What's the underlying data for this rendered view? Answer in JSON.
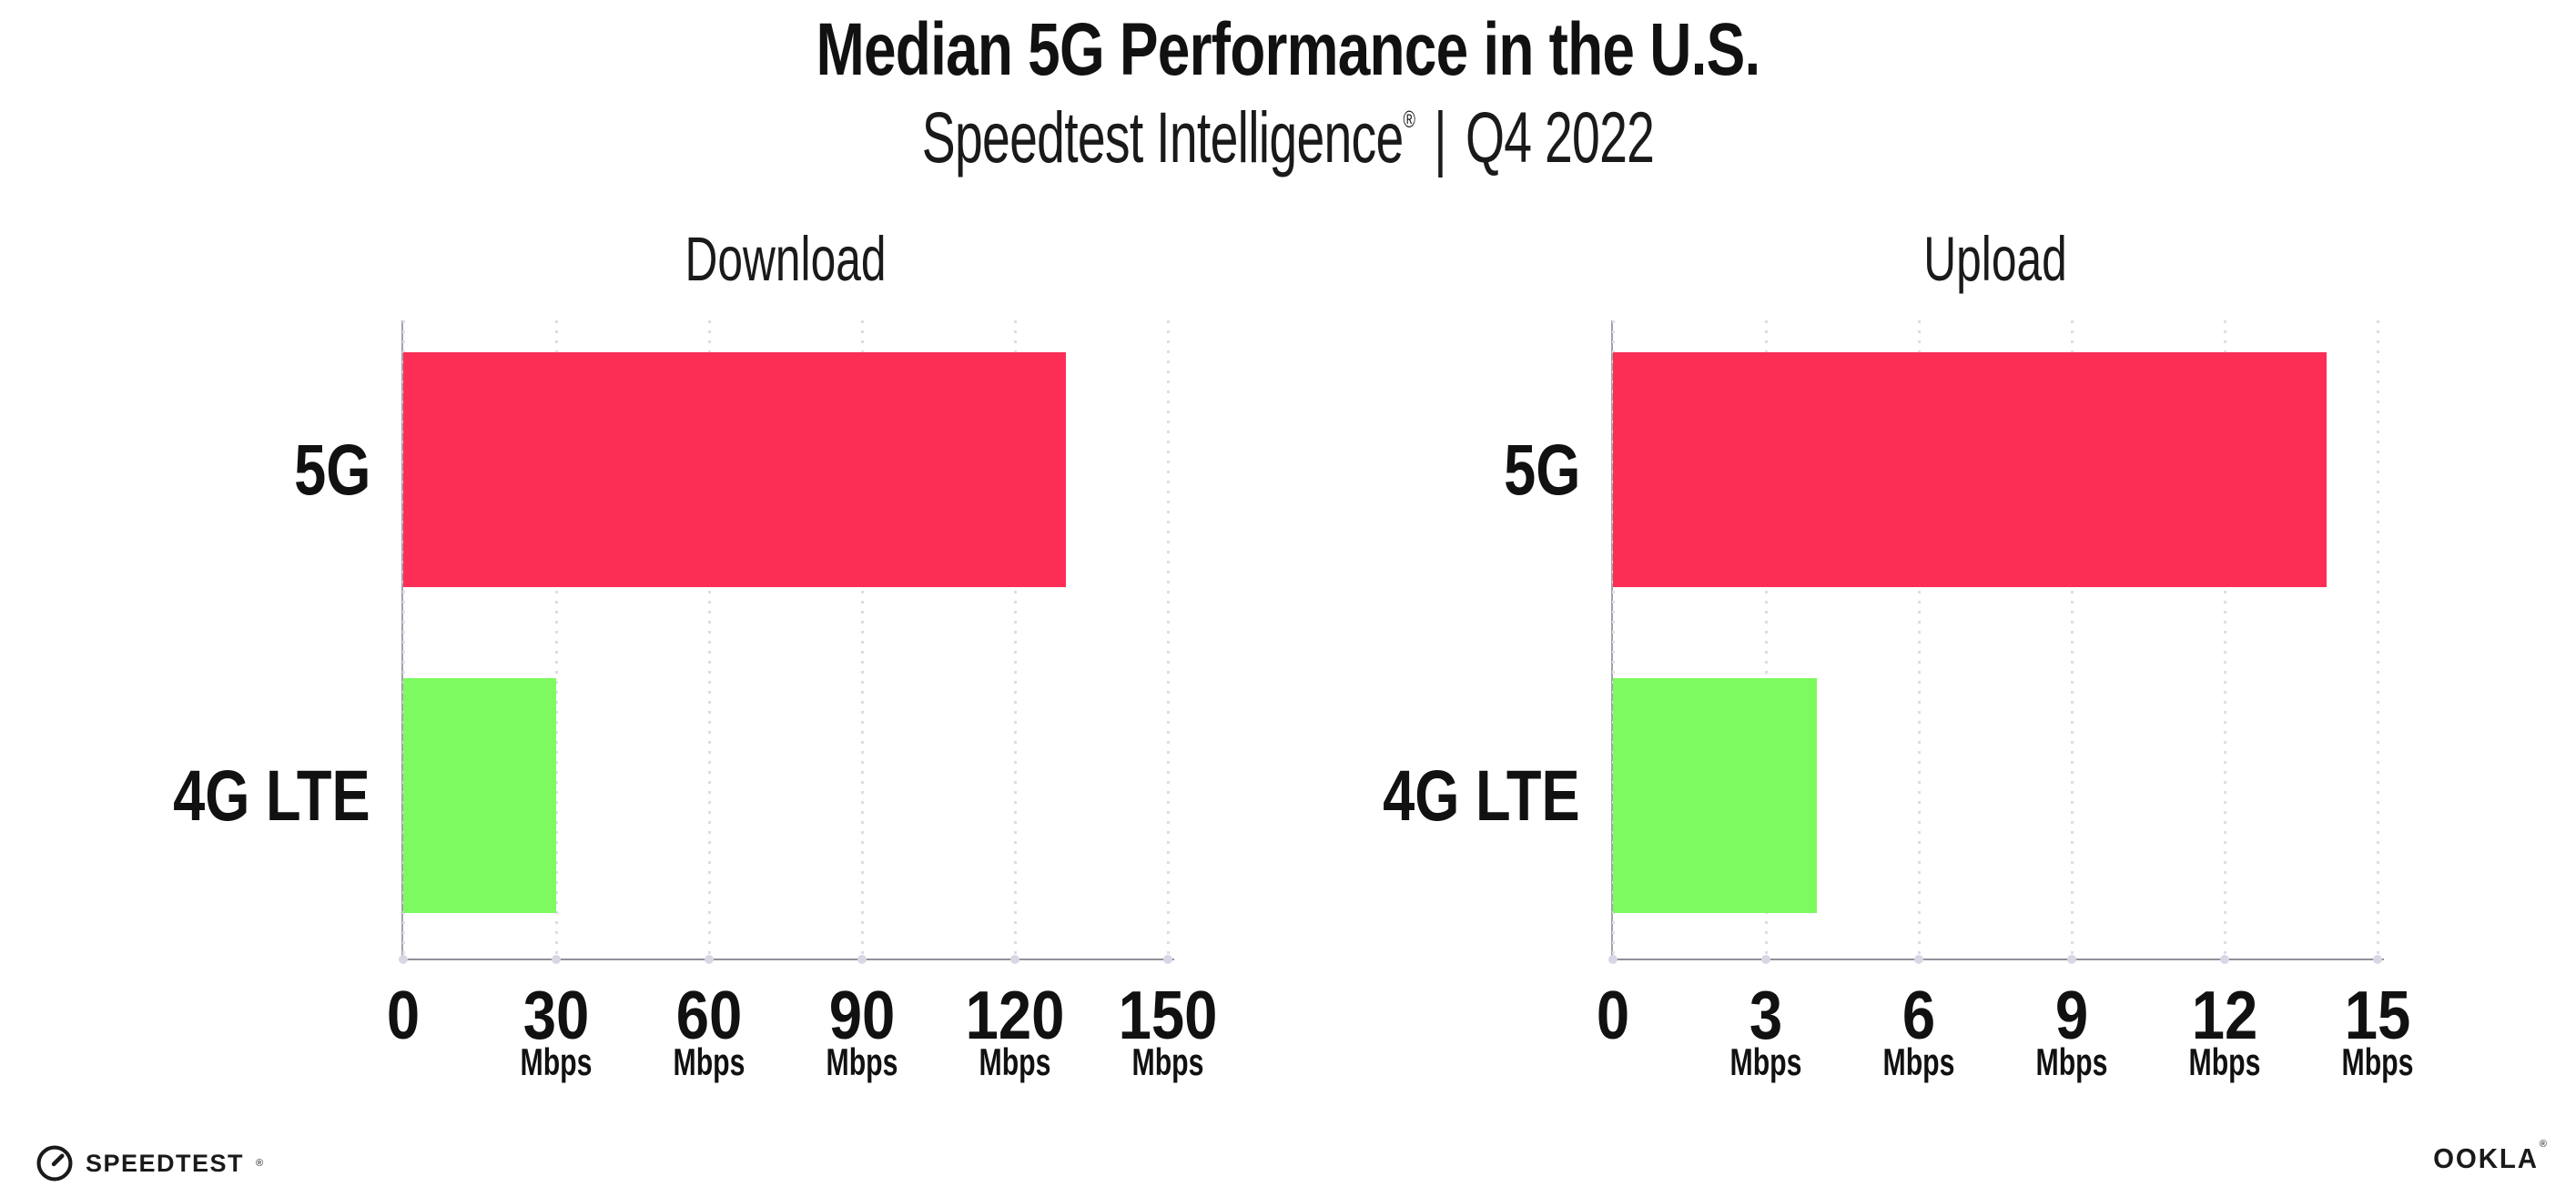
{
  "header": {
    "title": "Median 5G Performance in the U.S.",
    "subtitle_brand": "Speedtest Intelligence",
    "subtitle_reg": "®",
    "subtitle_divider": "|",
    "subtitle_period": "Q4 2022"
  },
  "chart_data": [
    {
      "type": "bar",
      "orientation": "horizontal",
      "title": "Download",
      "categories": [
        "5G",
        "4G LTE"
      ],
      "values": [
        130,
        30
      ],
      "unit": "Mbps",
      "xlabel": "",
      "xlim": [
        0,
        150
      ],
      "xticks": [
        0,
        30,
        60,
        90,
        120,
        150
      ],
      "grid": "dotted-vertical-gridlines",
      "legend": "none",
      "bar_colors": [
        "#fc2e56",
        "#7dfa60"
      ]
    },
    {
      "type": "bar",
      "orientation": "horizontal",
      "title": "Upload",
      "categories": [
        "5G",
        "4G LTE"
      ],
      "values": [
        14,
        4
      ],
      "unit": "Mbps",
      "xlabel": "",
      "xlim": [
        0,
        15
      ],
      "xticks": [
        0,
        3,
        6,
        9,
        12,
        15
      ],
      "grid": "dotted-vertical-gridlines",
      "legend": "none",
      "bar_colors": [
        "#fc2e56",
        "#7dfa60"
      ]
    }
  ],
  "footer": {
    "speedtest_logo_text": "SPEEDTEST",
    "speedtest_trademark": "®",
    "ookla_logo_text": "OOKLA",
    "ookla_trademark": "®"
  },
  "colors": {
    "bar_5g": "#fc2e56",
    "bar_4g_lte": "#7dfa60",
    "gridline": "#dcdcea",
    "axis_x": "#90909a",
    "axis_y": "#a2a2aa",
    "axis_dot": "#d7d7e6",
    "text": "#141414"
  }
}
